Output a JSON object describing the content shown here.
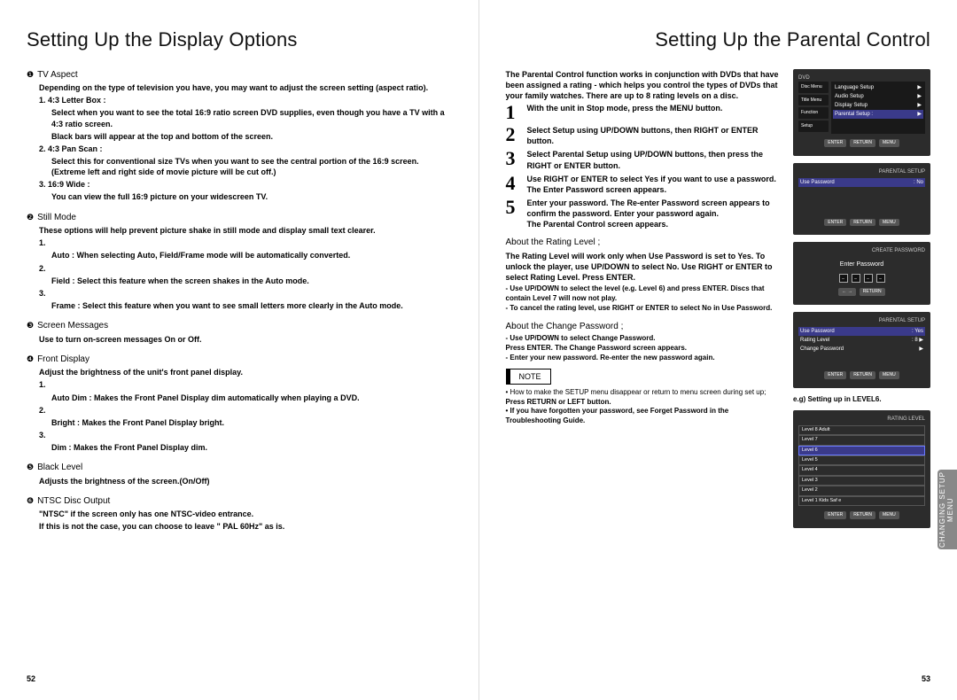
{
  "left_page": {
    "title": "Setting Up the Display Options",
    "page_num": "52",
    "sections": [
      {
        "num": "❶",
        "head": "TV Aspect",
        "intro": "Depending on the type of television you have, you may want to adjust the screen setting (aspect ratio).",
        "items": [
          {
            "n": "1.",
            "h": "4:3 Letter Box :",
            "t1": "Select when you want to see the total 16:9 ratio screen DVD supplies, even though you have a TV with a 4:3 ratio screen.",
            "t2": "Black bars will appear at the top and bottom of the screen."
          },
          {
            "n": "2.",
            "h": "4:3 Pan Scan :",
            "t1": "Select this for conventional size TVs when you want to see the central portion of the 16:9 screen. (Extreme left and right side of movie picture will be cut off.)",
            "t2": ""
          },
          {
            "n": "3.",
            "h": "16:9 Wide :",
            "t1": "You can view the full 16:9 picture on your widescreen TV.",
            "t2": ""
          }
        ]
      },
      {
        "num": "❷",
        "head": "Still Mode",
        "intro": "These options will help prevent picture shake in still mode and display small text clearer.",
        "items": [
          {
            "n": "1.",
            "h": "",
            "t1": "Auto : When selecting Auto, Field/Frame mode will be automatically converted.",
            "t2": ""
          },
          {
            "n": "2.",
            "h": "",
            "t1": "Field : Select this feature when the screen shakes in the Auto mode.",
            "t2": ""
          },
          {
            "n": "3.",
            "h": "",
            "t1": "Frame : Select this feature when you want to see small letters more clearly in the Auto mode.",
            "t2": ""
          }
        ]
      },
      {
        "num": "❸",
        "head": "Screen Messages",
        "intro": "Use to turn on-screen messages On or Off.",
        "items": []
      },
      {
        "num": "❹",
        "head": "Front Display",
        "intro": "Adjust the brightness of the unit's front panel display.",
        "items": [
          {
            "n": "1.",
            "h": "",
            "t1": "Auto Dim : Makes the Front Panel Display dim automatically when playing a DVD.",
            "t2": ""
          },
          {
            "n": "2.",
            "h": "",
            "t1": "Bright : Makes the Front Panel Display bright.",
            "t2": ""
          },
          {
            "n": "3.",
            "h": "",
            "t1": "Dim : Makes the Front Panel Display dim.",
            "t2": ""
          }
        ]
      },
      {
        "num": "❺",
        "head": "Black Level",
        "intro": "Adjusts the brightness of the screen.(On/Off)",
        "items": []
      },
      {
        "num": "❻",
        "head": "NTSC Disc Output",
        "intro": "\"NTSC\" if the screen only has one NTSC-video entrance.",
        "extra": "If this is not the case, you can choose to leave \" PAL 60Hz\" as is."
      }
    ]
  },
  "right_page": {
    "title": "Setting Up the Parental Control",
    "page_num": "53",
    "intro": "The Parental Control function works in conjunction with DVDs that have been assigned a rating - which helps you control the types of DVDs that your family watches. There are up to 8 rating levels on a disc.",
    "steps": [
      {
        "n": "1",
        "t": "With the unit in Stop mode, press the MENU button."
      },
      {
        "n": "2",
        "t": "Select Setup using UP/DOWN buttons, then RIGHT or ENTER button."
      },
      {
        "n": "3",
        "t": "Select Parental Setup using UP/DOWN buttons, then press the RIGHT or ENTER button."
      },
      {
        "n": "4",
        "t": "Use RIGHT or ENTER to select Yes if you want to use a password. The Enter Password screen appears."
      },
      {
        "n": "5",
        "t": "Enter your password. The Re-enter Password screen appears to confirm the password. Enter your password again.",
        "t2": "The Parental Control screen appears."
      }
    ],
    "rating_head": "About the Rating Level  ;",
    "rating_body": "The Rating Level will work only when Use Password is set to Yes. To unlock the player, use UP/DOWN to select No. Use RIGHT or ENTER to select Rating Level. Press ENTER.",
    "rating_bullets": [
      "- Use UP/DOWN to select the level (e.g. Level 6) and press ENTER. Discs that contain Level 7 will now not play.",
      "- To cancel the rating level, use RIGHT or ENTER to select No in Use Password."
    ],
    "change_head": "About the Change Password  ;",
    "change_bullets": [
      "- Use UP/DOWN to select Change Password.",
      "  Press ENTER. The Change Password screen appears.",
      "- Enter your new password. Re-enter the new password again."
    ],
    "note_label": "NOTE",
    "notes": [
      "• How to make the SETUP menu disappear or return to menu screen during set up;",
      "Press RETURN or LEFT button.",
      "• If you have forgotten your password, see Forget Password in the Troubleshooting Guide."
    ],
    "side_tab": "CHANGING\nSETUP MENU",
    "fig1": {
      "hdr": "DVD",
      "side": [
        "Disc Menu",
        "Title Menu",
        "Function",
        "Setup"
      ],
      "items": [
        {
          "l": "Language Setup",
          "r": "▶"
        },
        {
          "l": "Audio Setup",
          "r": "▶"
        },
        {
          "l": "Display Setup",
          "r": "▶"
        },
        {
          "l": "Parental Setup :",
          "r": "▶",
          "hl": true
        }
      ],
      "btns": [
        "ENTER",
        "RETURN",
        "MENU"
      ]
    },
    "fig2": {
      "hdr": "PARENTAL SETUP",
      "row": {
        "l": "Use Password",
        "v": ": No"
      },
      "btns": [
        "ENTER",
        "RETURN",
        "MENU"
      ]
    },
    "fig3": {
      "hdr": "CREATE PASSWORD",
      "label": "Enter Password",
      "dashes": [
        "–",
        "–",
        "–",
        "–"
      ],
      "btns": [
        "← →",
        "RETURN"
      ]
    },
    "fig4": {
      "hdr": "PARENTAL SETUP",
      "rows": [
        {
          "l": "Use Password",
          "v": ": Yes",
          "hl": true
        },
        {
          "l": "Rating Level",
          "v": ": 8",
          "r": "▶"
        },
        {
          "l": "Change Password",
          "v": "",
          "r": "▶"
        }
      ],
      "btns": [
        "ENTER",
        "RETURN",
        "MENU"
      ]
    },
    "fig_eg_label": "e.g) Setting up in LEVEL6.",
    "fig5": {
      "hdr": "RATING LEVEL",
      "levels": [
        "Level 8 Adult",
        "Level 7",
        "Level 6",
        "Level 5",
        "Level 4",
        "Level 3",
        "Level 2",
        "Level 1 Kids Saf e"
      ],
      "sel_idx": 2,
      "btns": [
        "ENTER",
        "RETURN",
        "MENU"
      ]
    }
  },
  "colors": {
    "page_bg": "#ffffff",
    "fig_bg": "#2c2c2c",
    "fig_hl": "#3a3a8a",
    "side_tab": "#888888"
  }
}
